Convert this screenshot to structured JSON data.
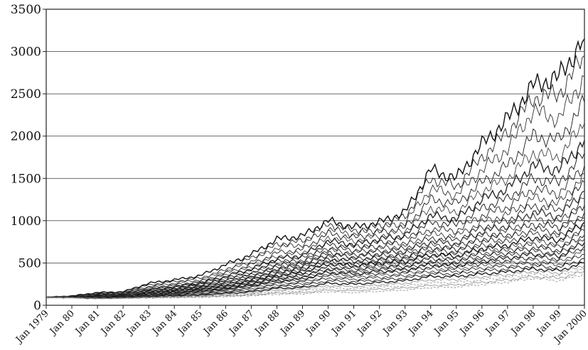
{
  "chart_data": {
    "type": "line",
    "title": "",
    "xlabel": "",
    "ylabel": "",
    "ylim": [
      0,
      3500
    ],
    "y_ticks": [
      0,
      500,
      1000,
      1500,
      2000,
      2500,
      3000,
      3500
    ],
    "x_tick_labels": [
      "Jan 1979",
      "Jan 80",
      "Jan 81",
      "Jan 82",
      "Jan 83",
      "Jan 84",
      "Jan 85",
      "Jan 86",
      "Jan 87",
      "Jan 88",
      "Jan 89",
      "Jan 90",
      "Jan 91",
      "Jan 92",
      "Jan 93",
      "Jan 94",
      "Jan 95",
      "Jan 96",
      "Jan 97",
      "Jan 98",
      "Jan 99",
      "Jan 2000"
    ],
    "x": [
      1979,
      1980,
      1981,
      1982,
      1983,
      1984,
      1985,
      1986,
      1987,
      1988,
      1989,
      1990,
      1991,
      1992,
      1993,
      1994,
      1995,
      1996,
      1997,
      1998,
      1999,
      2000
    ],
    "grid": "horizontal",
    "legend": "none",
    "series_color": "#111111",
    "series": [
      {
        "values": [
          95,
          110,
          150,
          160,
          260,
          300,
          350,
          480,
          600,
          780,
          820,
          1000,
          920,
          980,
          1100,
          1600,
          1500,
          1900,
          2200,
          2600,
          2700,
          3150
        ]
      },
      {
        "values": [
          95,
          108,
          140,
          155,
          240,
          280,
          320,
          420,
          560,
          720,
          760,
          960,
          880,
          940,
          1050,
          1500,
          1400,
          1750,
          2050,
          2450,
          2500,
          2950
        ]
      },
      {
        "values": [
          95,
          106,
          135,
          150,
          220,
          260,
          300,
          400,
          520,
          680,
          720,
          900,
          840,
          900,
          980,
          1380,
          1300,
          1600,
          1850,
          2300,
          2200,
          2700
        ]
      },
      {
        "values": [
          95,
          104,
          130,
          145,
          210,
          240,
          280,
          380,
          480,
          620,
          660,
          850,
          800,
          860,
          920,
          1250,
          1200,
          1450,
          1650,
          2000,
          1950,
          2400
        ]
      },
      {
        "values": [
          95,
          103,
          125,
          140,
          200,
          230,
          270,
          360,
          450,
          580,
          620,
          800,
          760,
          820,
          880,
          1150,
          1100,
          1350,
          1500,
          1800,
          1750,
          2150
        ]
      },
      {
        "values": [
          95,
          102,
          122,
          135,
          190,
          220,
          260,
          340,
          430,
          550,
          590,
          760,
          720,
          780,
          830,
          1060,
          1020,
          1250,
          1380,
          1650,
          1600,
          1950
        ]
      },
      {
        "values": [
          95,
          101,
          120,
          130,
          180,
          210,
          250,
          320,
          410,
          520,
          560,
          720,
          690,
          740,
          790,
          980,
          950,
          1150,
          1260,
          1500,
          1450,
          1800
        ]
      },
      {
        "values": [
          95,
          100,
          118,
          128,
          175,
          200,
          240,
          305,
          390,
          490,
          530,
          680,
          650,
          700,
          740,
          900,
          880,
          1060,
          1160,
          1380,
          1320,
          1650
        ]
      },
      {
        "values": [
          95,
          100,
          115,
          125,
          170,
          195,
          230,
          295,
          375,
          470,
          510,
          650,
          620,
          670,
          700,
          840,
          820,
          980,
          1070,
          1270,
          1200,
          1550
        ]
      },
      {
        "values": [
          95,
          99,
          112,
          122,
          165,
          190,
          220,
          285,
          360,
          450,
          490,
          620,
          590,
          640,
          670,
          790,
          770,
          920,
          1000,
          1180,
          1120,
          1450
        ]
      },
      {
        "values": [
          95,
          98,
          110,
          120,
          160,
          185,
          215,
          275,
          345,
          430,
          470,
          600,
          570,
          610,
          640,
          750,
          730,
          870,
          940,
          1100,
          1050,
          1350
        ]
      },
      {
        "values": [
          95,
          98,
          108,
          118,
          155,
          180,
          210,
          265,
          330,
          410,
          450,
          570,
          540,
          580,
          610,
          710,
          690,
          820,
          880,
          1030,
          980,
          1260
        ]
      },
      {
        "values": [
          95,
          97,
          106,
          115,
          150,
          175,
          205,
          255,
          320,
          395,
          430,
          550,
          520,
          560,
          580,
          680,
          660,
          780,
          830,
          960,
          920,
          1180
        ]
      },
      {
        "values": [
          95,
          97,
          104,
          112,
          145,
          170,
          200,
          245,
          305,
          380,
          415,
          530,
          500,
          540,
          560,
          650,
          630,
          740,
          790,
          900,
          860,
          1100
        ]
      },
      {
        "values": [
          95,
          96,
          102,
          110,
          140,
          165,
          195,
          238,
          295,
          365,
          400,
          510,
          480,
          520,
          540,
          620,
          600,
          700,
          750,
          850,
          810,
          1040
        ]
      },
      {
        "values": [
          95,
          96,
          100,
          108,
          138,
          160,
          190,
          230,
          285,
          350,
          385,
          490,
          465,
          500,
          520,
          600,
          580,
          670,
          710,
          800,
          770,
          980
        ]
      },
      {
        "values": [
          95,
          95,
          98,
          106,
          135,
          155,
          185,
          222,
          275,
          338,
          370,
          470,
          450,
          480,
          500,
          575,
          560,
          640,
          680,
          760,
          730,
          930
        ]
      },
      {
        "values": [
          95,
          95,
          96,
          104,
          130,
          150,
          180,
          215,
          265,
          325,
          355,
          450,
          430,
          460,
          480,
          550,
          540,
          610,
          650,
          720,
          690,
          880
        ]
      },
      {
        "values": [
          95,
          94,
          94,
          102,
          125,
          145,
          175,
          208,
          255,
          312,
          340,
          430,
          410,
          440,
          460,
          525,
          515,
          580,
          620,
          680,
          650,
          830
        ]
      },
      {
        "values": [
          95,
          94,
          92,
          100,
          122,
          140,
          170,
          200,
          245,
          300,
          325,
          410,
          390,
          420,
          440,
          500,
          490,
          550,
          590,
          640,
          610,
          780
        ]
      },
      {
        "values": [
          95,
          93,
          90,
          98,
          118,
          135,
          165,
          192,
          235,
          288,
          310,
          390,
          370,
          400,
          420,
          480,
          470,
          525,
          560,
          605,
          580,
          740
        ]
      },
      {
        "values": [
          95,
          93,
          88,
          96,
          115,
          130,
          160,
          185,
          225,
          275,
          295,
          370,
          350,
          380,
          400,
          455,
          450,
          500,
          530,
          570,
          550,
          700
        ]
      },
      {
        "values": [
          95,
          92,
          86,
          94,
          112,
          126,
          150,
          175,
          210,
          258,
          275,
          345,
          330,
          355,
          375,
          430,
          425,
          470,
          500,
          535,
          515,
          650
        ]
      },
      {
        "values": [
          95,
          92,
          84,
          92,
          108,
          122,
          140,
          165,
          195,
          240,
          255,
          320,
          305,
          330,
          350,
          400,
          400,
          440,
          465,
          500,
          480,
          600
        ]
      },
      {
        "values": [
          95,
          91,
          82,
          90,
          104,
          116,
          130,
          152,
          178,
          220,
          232,
          290,
          280,
          300,
          320,
          370,
          370,
          405,
          430,
          465,
          445,
          550
        ]
      },
      {
        "values": [
          95,
          90,
          80,
          88,
          100,
          110,
          120,
          140,
          160,
          200,
          210,
          260,
          250,
          270,
          290,
          340,
          340,
          370,
          395,
          430,
          410,
          500
        ]
      },
      {
        "values": [
          95,
          90,
          80,
          86,
          96,
          104,
          112,
          128,
          145,
          180,
          190,
          230,
          220,
          240,
          260,
          300,
          305,
          335,
          360,
          400,
          380,
          470
        ]
      },
      {
        "values": [
          95,
          89,
          80,
          85,
          92,
          98,
          105,
          118,
          132,
          160,
          170,
          205,
          195,
          215,
          230,
          265,
          270,
          300,
          330,
          370,
          350,
          440
        ]
      },
      {
        "values": [
          95,
          89,
          80,
          84,
          88,
          94,
          100,
          110,
          122,
          145,
          150,
          180,
          172,
          190,
          205,
          235,
          240,
          270,
          300,
          340,
          320,
          400
        ]
      },
      {
        "values": [
          95,
          88,
          80,
          82,
          86,
          90,
          95,
          102,
          112,
          130,
          135,
          160,
          150,
          165,
          180,
          210,
          215,
          245,
          275,
          320,
          290,
          370
        ]
      }
    ]
  }
}
